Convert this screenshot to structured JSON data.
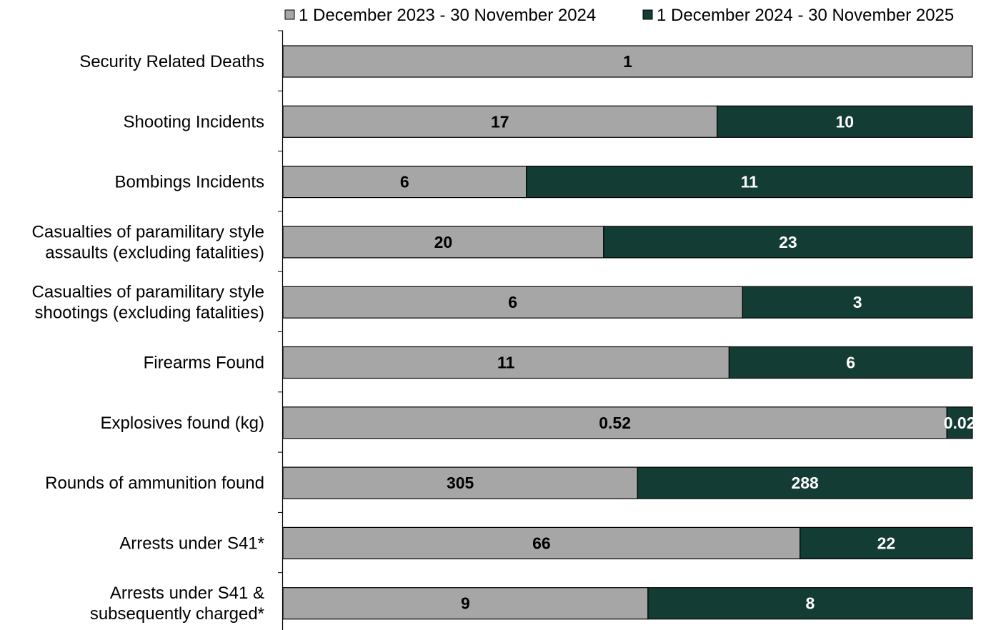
{
  "chart_data": {
    "type": "bar",
    "orientation": "horizontal",
    "stacked": "percent",
    "categories": [
      [
        "Security Related Deaths"
      ],
      [
        "Shooting Incidents"
      ],
      [
        "Bombings Incidents"
      ],
      [
        "Casualties of paramilitary style",
        "assaults (excluding fatalities)"
      ],
      [
        "Casualties of paramilitary style",
        "shootings (excluding fatalities)"
      ],
      [
        "Firearms Found"
      ],
      [
        "Explosives found (kg)"
      ],
      [
        "Rounds of ammunition found"
      ],
      [
        "Arrests under S41*"
      ],
      [
        "Arrests under S41 &",
        "subsequently charged*"
      ]
    ],
    "series": [
      {
        "name": "1 December 2023 - 30 November 2024",
        "color": "#a6a6a6",
        "label_color": "#000000",
        "values": [
          1,
          17,
          6,
          20,
          6,
          11,
          0.52,
          305,
          66,
          9
        ],
        "labels": [
          "1",
          "17",
          "6",
          "20",
          "6",
          "11",
          "0.52",
          "305",
          "66",
          "9"
        ]
      },
      {
        "name": "1 December 2024 - 30 November 2025",
        "color": "#123c34",
        "label_color": "#ffffff",
        "values": [
          0,
          10,
          11,
          23,
          3,
          6,
          0.02,
          288,
          22,
          8
        ],
        "labels": [
          "",
          "10",
          "11",
          "23",
          "3",
          "6",
          "0.02",
          "288",
          "22",
          "8"
        ]
      }
    ],
    "legend": "top",
    "grid": false
  }
}
